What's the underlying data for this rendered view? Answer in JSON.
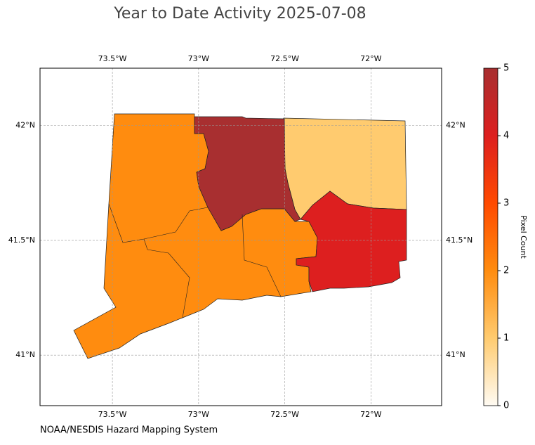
{
  "chart_data": {
    "type": "map",
    "title": "Year to Date Activity 2025-07-08",
    "credit": "NOAA/NESDIS Hazard Mapping System",
    "xlim": [
      -73.92,
      -71.59
    ],
    "ylim": [
      40.78,
      42.25
    ],
    "xticks": [
      {
        "value": -73.5,
        "label": "73.5°W"
      },
      {
        "value": -73,
        "label": "73°W"
      },
      {
        "value": -72.5,
        "label": "72.5°W"
      },
      {
        "value": -72,
        "label": "72°W"
      }
    ],
    "yticks": [
      {
        "value": 41,
        "label": "41°N"
      },
      {
        "value": 41.5,
        "label": "41.5°N"
      },
      {
        "value": 42,
        "label": "42°N"
      }
    ],
    "grid": true,
    "regions": [
      {
        "value": 2
      },
      {
        "value": 1
      },
      {
        "value": 4
      },
      {
        "value": 5
      }
    ],
    "colorbar": {
      "label": "Pixel Count",
      "lim": [
        0,
        5
      ],
      "ticks": [
        0,
        1,
        2,
        3,
        4,
        5
      ],
      "colors": [
        "#fffbf3",
        "#ffcb6f",
        "#ff8c0f",
        "#ff4a00",
        "#dd1f1f",
        "#a82f30"
      ]
    }
  }
}
